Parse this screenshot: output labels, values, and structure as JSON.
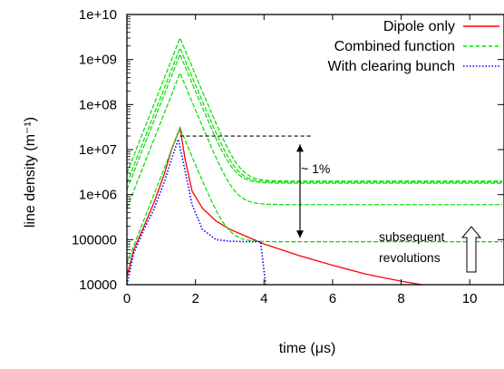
{
  "chart_data": {
    "type": "line",
    "xlabel": "time (μs)",
    "ylabel": "line density (m⁻¹)",
    "xlim": [
      0,
      11
    ],
    "ylim": [
      10000,
      10000000000
    ],
    "yscale": "log",
    "x_ticks": [
      "0",
      "2",
      "4",
      "6",
      "8",
      "10"
    ],
    "y_ticks": [
      "10000",
      "100000",
      "1e+06",
      "1e+07",
      "1e+08",
      "1e+09",
      "1e+10"
    ],
    "legend_position": "top-right",
    "series": [
      {
        "name": "Dipole only",
        "color": "#ff0000",
        "style": "solid",
        "points": [
          [
            0,
            15000
          ],
          [
            0.2,
            60000
          ],
          [
            0.5,
            200000
          ],
          [
            0.8,
            700000
          ],
          [
            1.1,
            3000000
          ],
          [
            1.3,
            10000000
          ],
          [
            1.55,
            30000000
          ],
          [
            1.7,
            6000000
          ],
          [
            1.9,
            1200000
          ],
          [
            2.2,
            500000
          ],
          [
            2.6,
            260000
          ],
          [
            3.0,
            170000
          ],
          [
            4.0,
            80000
          ],
          [
            5.0,
            45000
          ],
          [
            6.0,
            27000
          ],
          [
            7.0,
            17000
          ],
          [
            8.0,
            12000
          ],
          [
            8.6,
            10000
          ]
        ]
      },
      {
        "name": "Combined function",
        "color": "#00dd00",
        "style": "dashed",
        "curves": [
          {
            "peak": 3000000000,
            "plateau": 2000000
          },
          {
            "peak": 1800000000,
            "plateau": 1900000
          },
          {
            "peak": 1300000000,
            "plateau": 1800000
          },
          {
            "peak": 500000000,
            "plateau": 600000
          },
          {
            "peak": 30000000,
            "plateau": 90000
          }
        ]
      },
      {
        "name": "With clearing bunch",
        "color": "#0000ff",
        "style": "dotted",
        "points": [
          [
            0,
            10000
          ],
          [
            0.2,
            50000
          ],
          [
            0.5,
            170000
          ],
          [
            0.8,
            500000
          ],
          [
            1.1,
            2000000
          ],
          [
            1.35,
            8000000
          ],
          [
            1.5,
            17000000
          ],
          [
            1.65,
            5000000
          ],
          [
            1.9,
            600000
          ],
          [
            2.2,
            170000
          ],
          [
            2.6,
            100000
          ],
          [
            3.0,
            92000
          ],
          [
            3.5,
            90000
          ],
          [
            3.9,
            90000
          ],
          [
            4.0,
            20000
          ],
          [
            4.05,
            10000
          ]
        ]
      }
    ],
    "annotations": {
      "drop_label": "~ 1%",
      "revolutions_label_1": "subsequent",
      "revolutions_label_2": "revolutions"
    }
  }
}
